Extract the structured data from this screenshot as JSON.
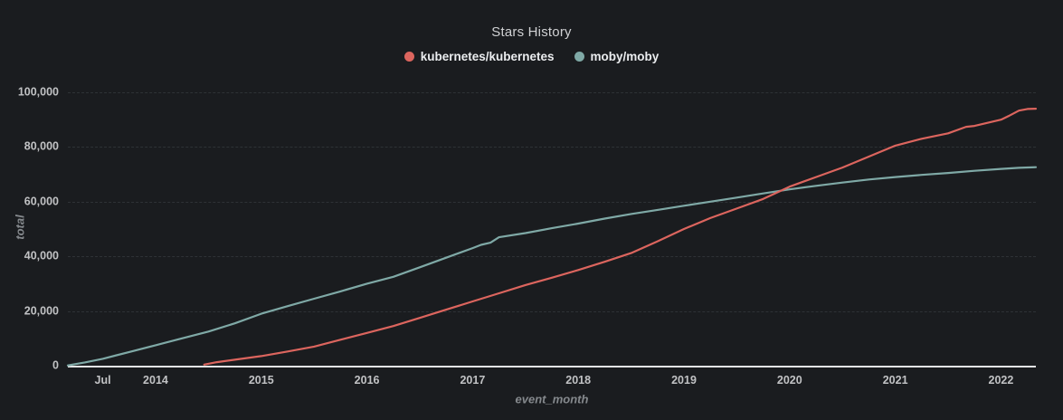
{
  "colors": {
    "background": "#1a1c1f",
    "axis_line": "#e3e4e5",
    "gridline": "#2e3236",
    "tick_text": "#c1c2c4",
    "axis_title_text": "#85898d",
    "title_text": "#d0d1d3",
    "legend_text": "#ebedef",
    "kubernetes_red": "#dc655e",
    "moby_teal": "#7fa9a6"
  },
  "legend": [
    {
      "label": "kubernetes/kubernetes",
      "color": "#dc655e"
    },
    {
      "label": "moby/moby",
      "color": "#7fa9a6"
    }
  ],
  "chart_data": {
    "type": "line",
    "title": "Stars History",
    "xlabel": "event_month",
    "ylabel": "total",
    "xlim": [
      2013.17,
      2022.33
    ],
    "ylim": [
      0,
      100000
    ],
    "grid": "horizontal-dashed",
    "legend_position": "top-center",
    "x_ticks": [
      {
        "label": "Jul",
        "x": 2013.5
      },
      {
        "label": "2014",
        "x": 2014
      },
      {
        "label": "2015",
        "x": 2015
      },
      {
        "label": "2016",
        "x": 2016
      },
      {
        "label": "2017",
        "x": 2017
      },
      {
        "label": "2018",
        "x": 2018
      },
      {
        "label": "2019",
        "x": 2019
      },
      {
        "label": "2020",
        "x": 2020
      },
      {
        "label": "2021",
        "x": 2021
      },
      {
        "label": "2022",
        "x": 2022
      }
    ],
    "y_ticks": [
      {
        "label": "0",
        "value": 0
      },
      {
        "label": "20,000",
        "value": 20000
      },
      {
        "label": "40,000",
        "value": 40000
      },
      {
        "label": "60,000",
        "value": 60000
      },
      {
        "label": "80,000",
        "value": 80000
      },
      {
        "label": "100,000",
        "value": 100000
      }
    ],
    "series": [
      {
        "name": "moby/moby",
        "color": "#7fa9a6",
        "points": [
          [
            2013.17,
            100
          ],
          [
            2013.33,
            1200
          ],
          [
            2013.5,
            2500
          ],
          [
            2013.75,
            5000
          ],
          [
            2014.0,
            7500
          ],
          [
            2014.25,
            10000
          ],
          [
            2014.5,
            12500
          ],
          [
            2014.75,
            15500
          ],
          [
            2015.0,
            19000
          ],
          [
            2015.25,
            21800
          ],
          [
            2015.5,
            24500
          ],
          [
            2015.75,
            27200
          ],
          [
            2016.0,
            30000
          ],
          [
            2016.25,
            32500
          ],
          [
            2016.5,
            36000
          ],
          [
            2016.75,
            39500
          ],
          [
            2017.0,
            43000
          ],
          [
            2017.08,
            44200
          ],
          [
            2017.17,
            45000
          ],
          [
            2017.25,
            47000
          ],
          [
            2017.5,
            48500
          ],
          [
            2017.75,
            50300
          ],
          [
            2018.0,
            52000
          ],
          [
            2018.25,
            53800
          ],
          [
            2018.5,
            55500
          ],
          [
            2018.75,
            57000
          ],
          [
            2019.0,
            58500
          ],
          [
            2019.25,
            60000
          ],
          [
            2019.5,
            61500
          ],
          [
            2019.75,
            63000
          ],
          [
            2020.0,
            64500
          ],
          [
            2020.25,
            65800
          ],
          [
            2020.5,
            67000
          ],
          [
            2020.75,
            68100
          ],
          [
            2021.0,
            69000
          ],
          [
            2021.25,
            69800
          ],
          [
            2021.5,
            70500
          ],
          [
            2021.75,
            71300
          ],
          [
            2022.0,
            72000
          ],
          [
            2022.17,
            72400
          ],
          [
            2022.33,
            72600
          ]
        ]
      },
      {
        "name": "kubernetes/kubernetes",
        "color": "#dc655e",
        "points": [
          [
            2014.46,
            400
          ],
          [
            2014.58,
            1300
          ],
          [
            2014.75,
            2200
          ],
          [
            2015.0,
            3500
          ],
          [
            2015.25,
            5200
          ],
          [
            2015.5,
            7000
          ],
          [
            2015.75,
            9500
          ],
          [
            2016.0,
            12000
          ],
          [
            2016.25,
            14500
          ],
          [
            2016.5,
            17500
          ],
          [
            2016.75,
            20500
          ],
          [
            2017.0,
            23500
          ],
          [
            2017.25,
            26500
          ],
          [
            2017.5,
            29500
          ],
          [
            2017.75,
            32200
          ],
          [
            2018.0,
            35000
          ],
          [
            2018.25,
            38000
          ],
          [
            2018.5,
            41200
          ],
          [
            2018.75,
            45500
          ],
          [
            2019.0,
            50000
          ],
          [
            2019.25,
            54000
          ],
          [
            2019.5,
            57500
          ],
          [
            2019.75,
            61000
          ],
          [
            2020.0,
            65500
          ],
          [
            2020.25,
            69000
          ],
          [
            2020.5,
            72500
          ],
          [
            2020.75,
            76500
          ],
          [
            2021.0,
            80500
          ],
          [
            2021.25,
            83000
          ],
          [
            2021.5,
            85000
          ],
          [
            2021.67,
            87400
          ],
          [
            2021.75,
            87700
          ],
          [
            2022.0,
            90000
          ],
          [
            2022.08,
            91500
          ],
          [
            2022.17,
            93300
          ],
          [
            2022.25,
            93900
          ],
          [
            2022.33,
            94000
          ]
        ]
      }
    ]
  }
}
